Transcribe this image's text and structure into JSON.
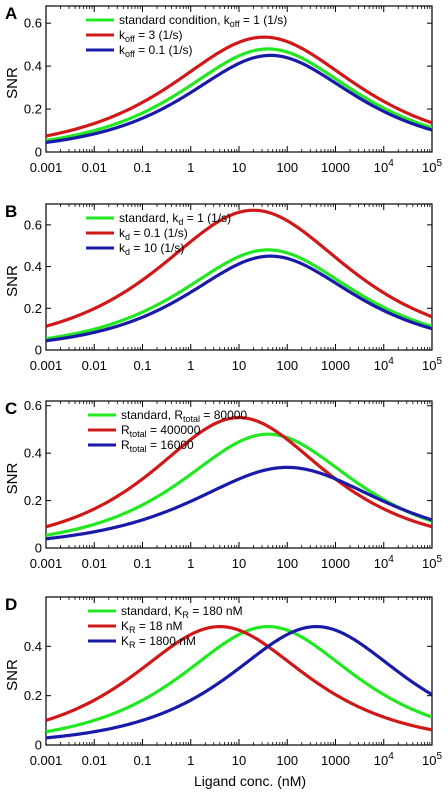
{
  "colors": {
    "green": "#22e822",
    "red": "#d01818",
    "blue": "#1a1aa8",
    "axis": "#000000"
  },
  "figure": {
    "xlabel": "Ligand conc. (nM)"
  },
  "chart_data": [
    {
      "type": "line",
      "panel": "A",
      "ylabel": "SNR",
      "xscale": "log",
      "xlim": [
        0.001,
        100000
      ],
      "ylim": [
        0,
        0.68
      ],
      "x_ticks": [
        "0.001",
        "0.01",
        "0.1",
        "1",
        "10",
        "100",
        "1000",
        "10^4",
        "10^5"
      ],
      "y_ticks": [
        "0",
        "0.2",
        "0.4",
        "0.6"
      ],
      "legend": "top-left",
      "series": [
        {
          "name": "standard condition, k_off = 1 (1/s)",
          "label": {
            "pre": "standard condition, k",
            "sub": "off",
            "post": " = 1 (1/s)"
          },
          "color": "green",
          "peak_x": 40,
          "peak_y": 0.48,
          "width": 1.6
        },
        {
          "name": "k_off = 3 (1/s)",
          "label": {
            "pre": "k",
            "sub": "off",
            "post": " = 3 (1/s)"
          },
          "color": "red",
          "peak_x": 33,
          "peak_y": 0.535,
          "width": 1.7
        },
        {
          "name": "k_off = 0.1 (1/s)",
          "label": {
            "pre": "k",
            "sub": "off",
            "post": " = 0.1 (1/s)"
          },
          "color": "blue",
          "peak_x": 45,
          "peak_y": 0.45,
          "width": 1.55
        }
      ]
    },
    {
      "type": "line",
      "panel": "B",
      "ylabel": "SNR",
      "xscale": "log",
      "xlim": [
        0.001,
        100000
      ],
      "ylim": [
        0,
        0.7
      ],
      "x_ticks": [
        "0.001",
        "0.01",
        "0.1",
        "1",
        "10",
        "100",
        "1000",
        "10^4",
        "10^5"
      ],
      "y_ticks": [
        "0",
        "0.2",
        "0.4",
        "0.6"
      ],
      "legend": "top-left",
      "series": [
        {
          "name": "standard, k_d = 1 (1/s)",
          "label": {
            "pre": "standard, k",
            "sub": "d",
            "post": " = 1 (1/s)"
          },
          "color": "green",
          "peak_x": 40,
          "peak_y": 0.48,
          "width": 1.6
        },
        {
          "name": "k_d = 0.1 (1/s)",
          "label": {
            "pre": "k",
            "sub": "d",
            "post": " = 0.1 (1/s)"
          },
          "color": "red",
          "peak_x": 20,
          "peak_y": 0.67,
          "width": 1.75
        },
        {
          "name": "k_d = 10 (1/s)",
          "label": {
            "pre": "k",
            "sub": "d",
            "post": " = 10 (1/s)"
          },
          "color": "blue",
          "peak_x": 45,
          "peak_y": 0.45,
          "width": 1.55
        }
      ]
    },
    {
      "type": "line",
      "panel": "C",
      "ylabel": "SNR",
      "xscale": "log",
      "xlim": [
        0.001,
        100000
      ],
      "ylim": [
        0,
        0.62
      ],
      "x_ticks": [
        "0.001",
        "0.01",
        "0.1",
        "1",
        "10",
        "100",
        "1000",
        "10^4",
        "10^5"
      ],
      "y_ticks": [
        "0",
        "0.2",
        "0.4",
        "0.6"
      ],
      "legend": "top-right",
      "series": [
        {
          "name": "standard, R_total = 80000",
          "label": {
            "pre": "standard, R",
            "sub": "total",
            "post": " = 80000"
          },
          "color": "green",
          "peak_x": 40,
          "peak_y": 0.48,
          "width": 1.6
        },
        {
          "name": "R_total = 400000",
          "label": {
            "pre": "R",
            "sub": "total",
            "post": " = 400000"
          },
          "color": "red",
          "peak_x": 10,
          "peak_y": 0.55,
          "width": 1.6
        },
        {
          "name": "R_total = 16000",
          "label": {
            "pre": "R",
            "sub": "total",
            "post": " = 16000"
          },
          "color": "blue",
          "peak_x": 100,
          "peak_y": 0.34,
          "width": 1.75
        }
      ]
    },
    {
      "type": "line",
      "panel": "D",
      "ylabel": "SNR",
      "xscale": "log",
      "xlim": [
        0.001,
        100000
      ],
      "ylim": [
        0,
        0.6
      ],
      "x_ticks": [
        "0.001",
        "0.01",
        "0.1",
        "1",
        "10",
        "100",
        "1000",
        "10^4",
        "10^5"
      ],
      "y_ticks": [
        "0",
        "0.2",
        "0.4"
      ],
      "legend": "top-right",
      "series": [
        {
          "name": "standard, K_R = 180 nM",
          "label": {
            "pre": "standard, K",
            "sub": "R",
            "post": " = 180 nM"
          },
          "color": "green",
          "peak_x": 40,
          "peak_y": 0.48,
          "width": 1.6
        },
        {
          "name": "K_R = 18 nM",
          "label": {
            "pre": "K",
            "sub": "R",
            "post": " = 18 nM"
          },
          "color": "red",
          "peak_x": 4,
          "peak_y": 0.48,
          "width": 1.6
        },
        {
          "name": "K_R = 1800 nM",
          "label": {
            "pre": "K",
            "sub": "R",
            "post": " = 1800 nM"
          },
          "color": "blue",
          "peak_x": 400,
          "peak_y": 0.48,
          "width": 1.6
        }
      ]
    }
  ]
}
